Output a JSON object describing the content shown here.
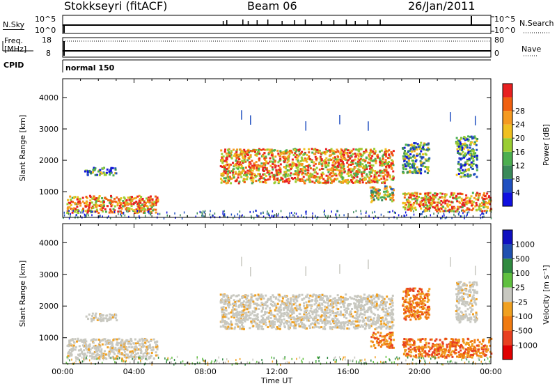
{
  "header": {
    "station": "Stokkseyri (fitACF)",
    "beam": "Beam 06",
    "date": "26/Jan/2011"
  },
  "noise_panel": {
    "left_label": "N.Sky",
    "right_label": "N.Search",
    "left_ticks": [
      "10^5",
      "10^0"
    ],
    "right_ticks": [
      "10^5",
      "10^0"
    ]
  },
  "freq_panel": {
    "left_label_1": "Freq.",
    "left_label_2": "[MHz]",
    "right_label": "Nave",
    "left_ticks": [
      "18",
      "8"
    ],
    "right_ticks": [
      "80",
      "0"
    ]
  },
  "cpid": {
    "label": "CPID",
    "value": "normal 150"
  },
  "colors": {
    "power_scale": [
      "#1010e0",
      "#2050c0",
      "#3a8a5a",
      "#4caf50",
      "#9acd32",
      "#f0c020",
      "#f59a20",
      "#f06010",
      "#e82020"
    ],
    "velocity_scale": [
      "#1010c0",
      "#2050b0",
      "#308a40",
      "#60c040",
      "#c8c8c0",
      "#f0a020",
      "#f07a10",
      "#e84020",
      "#e00000"
    ]
  },
  "chart_data": [
    {
      "type": "heatmap",
      "title": "",
      "xlabel": "",
      "ylabel": "Slant Range [km]",
      "x_ticks": [
        "00:00",
        "04:00",
        "08:00",
        "12:00",
        "16:00",
        "20:00",
        "00:00"
      ],
      "y_ticks": [
        "1000",
        "2000",
        "3000",
        "4000"
      ],
      "xlim_hours": [
        0,
        24
      ],
      "ylim_km": [
        180,
        4600
      ],
      "colorbar": {
        "label": "Power [dB]",
        "ticks": [
          "4",
          "8",
          "12",
          "16",
          "20",
          "24",
          "28"
        ],
        "range": [
          0,
          30
        ]
      },
      "echo_regions": [
        {
          "t0": 0.2,
          "t1": 5.3,
          "r0": 350,
          "r1": 900,
          "level": 0.75
        },
        {
          "t0": 1.2,
          "t1": 3.0,
          "r0": 1550,
          "r1": 1800,
          "level": 0.25
        },
        {
          "t0": 8.8,
          "t1": 18.5,
          "r0": 1300,
          "r1": 2400,
          "level": 0.7
        },
        {
          "t0": 17.2,
          "t1": 18.5,
          "r0": 700,
          "r1": 1200,
          "level": 0.5
        },
        {
          "t0": 19.0,
          "t1": 24.0,
          "r0": 400,
          "r1": 1000,
          "level": 0.75
        },
        {
          "t0": 19.0,
          "t1": 20.5,
          "r0": 1600,
          "r1": 2600,
          "level": 0.35
        },
        {
          "t0": 22.0,
          "t1": 23.2,
          "r0": 1500,
          "r1": 2800,
          "level": 0.3
        }
      ]
    },
    {
      "type": "heatmap",
      "title": "",
      "xlabel": "Time UT",
      "ylabel": "Slant Range [km]",
      "x_ticks": [
        "00:00",
        "04:00",
        "08:00",
        "12:00",
        "16:00",
        "20:00",
        "00:00"
      ],
      "y_ticks": [
        "1000",
        "2000",
        "3000",
        "4000"
      ],
      "xlim_hours": [
        0,
        24
      ],
      "ylim_km": [
        180,
        4600
      ],
      "colorbar": {
        "label": "Velocity [m s^-1]",
        "ticks": [
          "1000",
          "500",
          "100",
          "25",
          "-25",
          "-100",
          "-500",
          "-1000"
        ],
        "range": [
          -1000,
          1000
        ]
      },
      "echo_regions": [
        {
          "t0": 0.2,
          "t1": 5.3,
          "r0": 350,
          "r1": 1000,
          "velocity": 20
        },
        {
          "t0": 1.2,
          "t1": 3.0,
          "r0": 1550,
          "r1": 1800,
          "velocity": 0
        },
        {
          "t0": 8.8,
          "t1": 18.5,
          "r0": 1300,
          "r1": 2400,
          "velocity": 0
        },
        {
          "t0": 17.2,
          "t1": 18.5,
          "r0": 700,
          "r1": 1200,
          "velocity": -150
        },
        {
          "t0": 19.0,
          "t1": 24.0,
          "r0": 400,
          "r1": 1000,
          "velocity": -150
        },
        {
          "t0": 19.0,
          "t1": 20.5,
          "r0": 1600,
          "r1": 2600,
          "velocity": -150
        },
        {
          "t0": 22.0,
          "t1": 23.2,
          "r0": 1500,
          "r1": 2800,
          "velocity": 0
        }
      ]
    }
  ]
}
